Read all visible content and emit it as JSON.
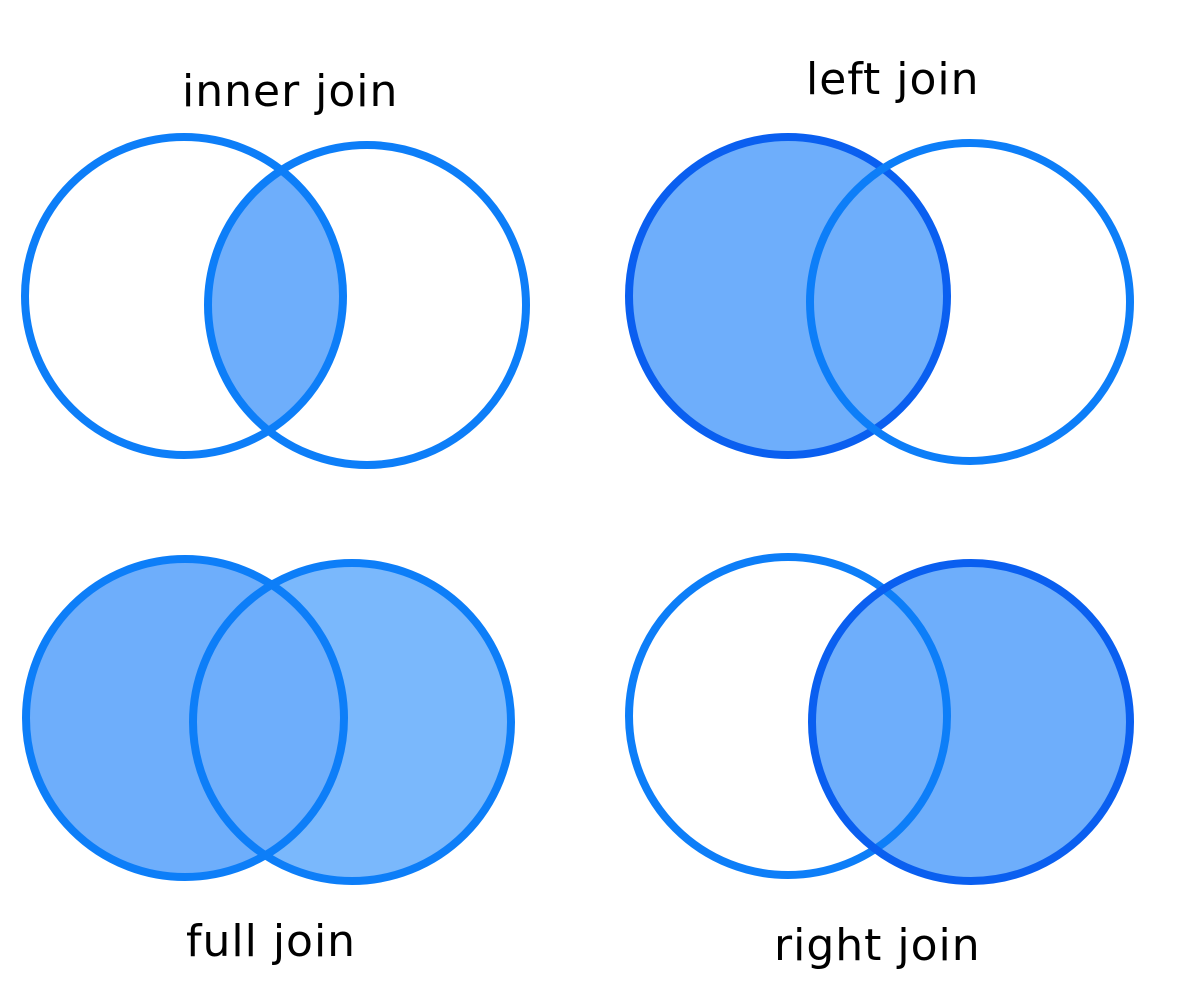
{
  "colors": {
    "stroke": "#0d7ef8",
    "stroke_dark": "#0a5ff0",
    "fill": "#6eaefb",
    "fill_light": "#7ab8fc",
    "background": "#ffffff"
  },
  "panels": [
    {
      "key": "inner",
      "label": "inner join",
      "shade": "intersection"
    },
    {
      "key": "left",
      "label": "left join",
      "shade": "left"
    },
    {
      "key": "full",
      "label": "full join",
      "shade": "both"
    },
    {
      "key": "right",
      "label": "right join",
      "shade": "right"
    }
  ]
}
